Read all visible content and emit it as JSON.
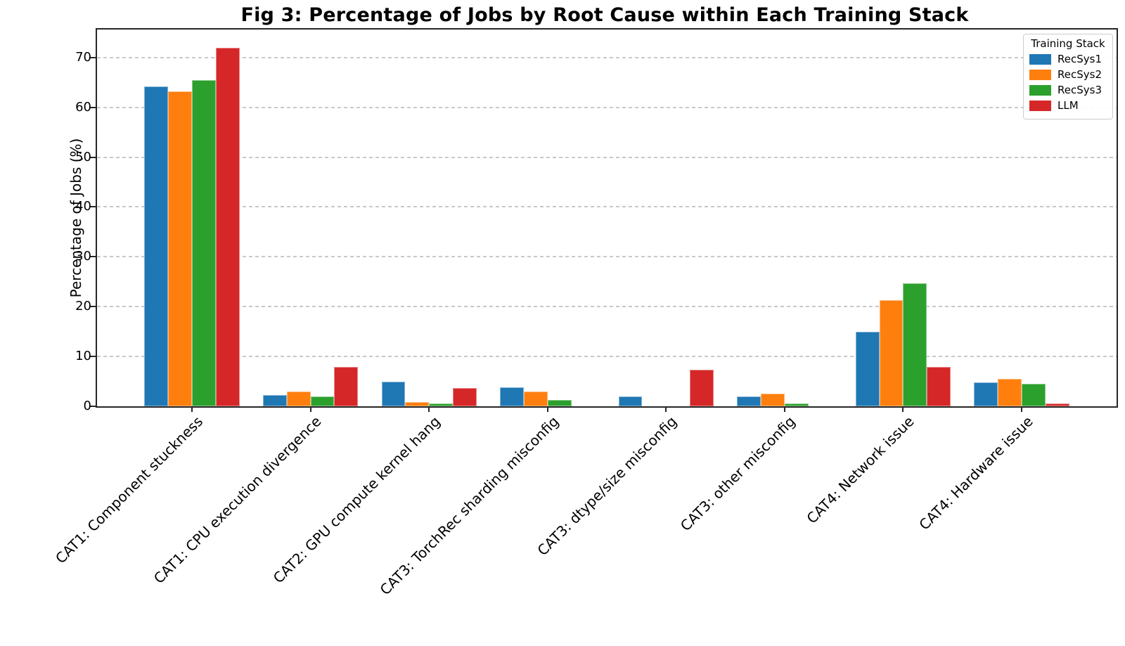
{
  "chart_data": {
    "type": "bar",
    "title": "Fig 3: Percentage of Jobs by Root Cause within Each Training Stack",
    "xlabel": "",
    "ylabel": "Percentage of Jobs (%)",
    "ylim": [
      0,
      75.6
    ],
    "yticks": [
      0,
      10,
      20,
      30,
      40,
      50,
      60,
      70
    ],
    "grid": "horizontal-dashed",
    "legend": {
      "title": "Training Stack",
      "position": "upper right"
    },
    "categories": [
      "CAT1: Component stuckness",
      "CAT1: CPU execution divergence",
      "CAT2: GPU compute kernel hang",
      "CAT3: TorchRec sharding misconfig",
      "CAT3: dtype/size misconfig",
      "CAT3: other misconfig",
      "CAT4: Network issue",
      "CAT4: Hardware issue"
    ],
    "series": [
      {
        "name": "RecSys1",
        "color": "#1f77b4",
        "values": [
          64.2,
          2.3,
          5.0,
          3.8,
          2.0,
          2.0,
          14.9,
          4.8
        ]
      },
      {
        "name": "RecSys2",
        "color": "#ff7f0e",
        "values": [
          63.2,
          3.0,
          0.8,
          2.9,
          0.0,
          2.6,
          21.3,
          5.5
        ]
      },
      {
        "name": "RecSys3",
        "color": "#2ca02c",
        "values": [
          65.5,
          2.0,
          0.5,
          1.3,
          0.0,
          0.5,
          24.7,
          4.5
        ]
      },
      {
        "name": "LLM",
        "color": "#d62728",
        "values": [
          72.0,
          7.9,
          3.6,
          0.0,
          7.4,
          0.0,
          7.9,
          0.5
        ]
      }
    ]
  }
}
